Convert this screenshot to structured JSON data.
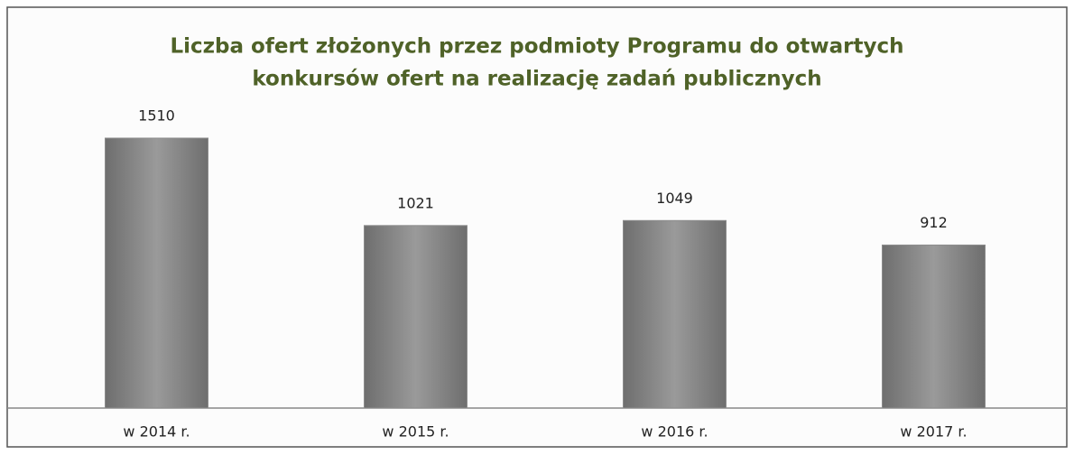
{
  "chart_data": {
    "type": "bar",
    "title": [
      "Liczba ofert złożonych przez podmioty Programu do otwartych",
      "konkursów ofert na realizację zadań publicznych"
    ],
    "categories": [
      "w 2014 r.",
      "w 2015 r.",
      "w 2016 r.",
      "w 2017 r."
    ],
    "values": [
      1510,
      1021,
      1049,
      912
    ],
    "color": "#8c8c8c",
    "grid": false
  }
}
